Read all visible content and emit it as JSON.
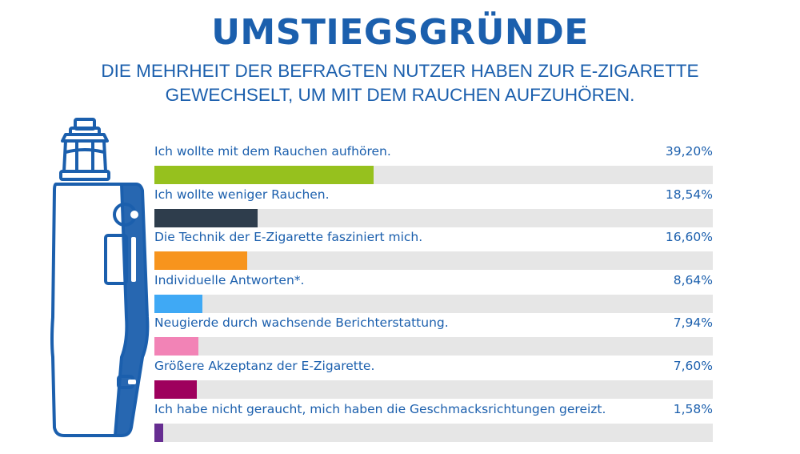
{
  "header": {
    "title": "UMSTIEGSGRÜNDE",
    "subtitle_line1": "DIE MEHRHEIT DER BEFRAGTEN NUTZER HABEN ZUR E-ZIGARETTE",
    "subtitle_line2": "GEWECHSELT, UM MIT DEM RAUCHEN AUFZUHÖREN."
  },
  "colors": {
    "text": "#1b5fad",
    "track": "#e6e6e6",
    "device_stroke": "#1b5fad"
  },
  "icons": {
    "illustration": "e-cigarette-icon"
  },
  "chart_data": {
    "type": "bar",
    "orientation": "horizontal",
    "xlim": [
      0,
      100
    ],
    "categories": [
      "Ich wollte mit dem Rauchen aufhören.",
      "Ich wollte weniger Rauchen.",
      "Die Technik der E-Zigarette fasziniert mich.",
      "Individuelle Antworten*.",
      "Neugierde durch wachsende Berichterstattung.",
      "Größere Akzeptanz der E-Zigarette.",
      "Ich habe nicht geraucht, mich haben die Geschmacksrichtungen gereizt."
    ],
    "values": [
      39.2,
      18.54,
      16.6,
      8.64,
      7.94,
      7.6,
      1.58
    ],
    "value_labels": [
      "39,20%",
      "18,54%",
      "16,60%",
      "8,64%",
      "7,94%",
      "7,60%",
      "1,58%"
    ],
    "bar_colors": [
      "#96c11e",
      "#2e3d4c",
      "#f7941d",
      "#3fa9f5",
      "#f283b6",
      "#9e005d",
      "#662d91"
    ],
    "grid": false,
    "legend": "none"
  }
}
